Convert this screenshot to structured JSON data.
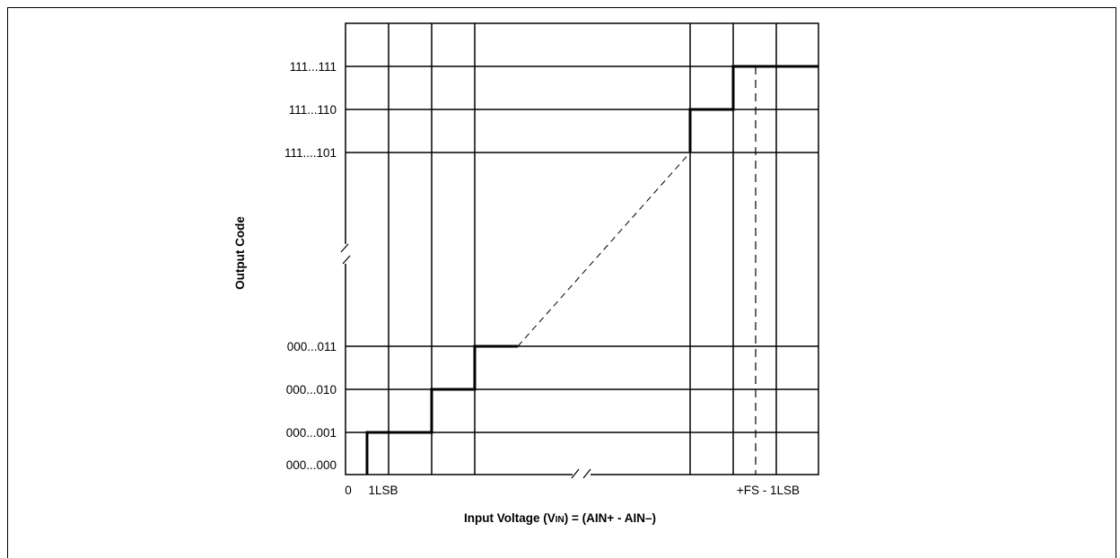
{
  "diagram": {
    "y_axis_title": "Output Code",
    "x_axis_title": {
      "prefix": "Input Voltage (V",
      "subscript": "IN",
      "suffix": ") = (AIN+ - AIN–)"
    },
    "y_codes": [
      "111...111",
      "111...110",
      "111....101",
      "000...011",
      "000...010",
      "000...001",
      "000...000"
    ],
    "x_labels": {
      "origin": "0",
      "first_step": "1LSB",
      "full_scale": "+FS - 1LSB"
    },
    "line_color": "#000000"
  }
}
